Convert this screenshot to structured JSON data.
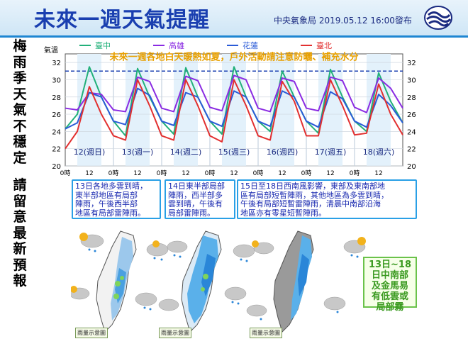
{
  "header": {
    "title": "未來一週天氣提醒",
    "issuer": "中央氣象局 2019.05.12 16:00發布"
  },
  "side_text": [
    "梅",
    "雨",
    "季",
    "天",
    "氣",
    "不",
    "穩",
    "定",
    "請",
    "留",
    "意",
    "最",
    "新",
    "預",
    "報"
  ],
  "chart_data": {
    "type": "line",
    "ylabel": "氣溫",
    "ylim": [
      20,
      33
    ],
    "yticks": [
      20,
      22,
      24,
      26,
      28,
      30,
      32
    ],
    "banner": "未來一週各地白天暖熱如夏，戶外活動請注意防曬、補充水分",
    "reference_line": 31,
    "day_labels": [
      "12(週日)",
      "13(週一)",
      "14(週二)",
      "15(週三)",
      "16(週四)",
      "17(週五)",
      "18(週六)"
    ],
    "x_ticks": [
      "0時",
      "12",
      "0時",
      "12",
      "0時",
      "12",
      "0時",
      "12",
      "0時",
      "12",
      "0時",
      "12",
      "0時",
      "12"
    ],
    "x_hours": [
      0,
      6,
      12,
      18,
      24,
      30,
      36,
      42,
      48,
      54,
      60,
      66,
      72,
      78,
      84,
      90,
      96,
      102,
      108,
      114,
      120,
      126,
      132,
      138,
      144,
      150,
      156,
      162,
      168
    ],
    "series": [
      {
        "name": "臺中",
        "color": "#22b07a",
        "values": [
          24.3,
          26,
          31.5,
          28,
          25.2,
          23.5,
          31.3,
          28,
          25.2,
          23.7,
          31.4,
          28,
          25.2,
          23.7,
          31.5,
          28,
          25.2,
          24,
          31,
          28,
          25.2,
          23.8,
          31.2,
          28,
          25.2,
          24,
          30.8,
          27.5,
          25
        ]
      },
      {
        "name": "高雄",
        "color": "#8a2be2",
        "values": [
          26.7,
          26.5,
          28.5,
          28.3,
          26.5,
          26.3,
          30.3,
          29.8,
          26.7,
          26.3,
          30.4,
          29.9,
          26.8,
          26.4,
          30.5,
          30,
          26.7,
          26.3,
          30.2,
          29.8,
          26.7,
          26.4,
          30.3,
          29.9,
          26.8,
          26.2,
          30.2,
          29,
          26.7
        ]
      },
      {
        "name": "花蓮",
        "color": "#2a5bd7",
        "values": [
          24.3,
          25,
          28.5,
          28,
          25.2,
          24.8,
          29,
          28.2,
          25.2,
          24.7,
          28.5,
          28,
          25.2,
          24.6,
          28.7,
          28,
          25.2,
          24.6,
          28.7,
          28,
          25.2,
          24.5,
          28.6,
          27.8,
          25.2,
          24.5,
          28.3,
          27,
          25
        ]
      },
      {
        "name": "臺北",
        "color": "#e23030",
        "values": [
          22,
          24,
          29.2,
          26,
          23.5,
          23,
          30,
          27,
          23.5,
          23,
          30,
          27,
          23.5,
          22.8,
          30,
          27,
          23.5,
          23,
          29.8,
          27.5,
          23.5,
          23.5,
          30,
          27,
          23.6,
          23.8,
          29.5,
          26,
          23.6
        ]
      }
    ]
  },
  "panels": {
    "p13": [
      "13日各地多雲到晴，",
      "東半部地區有局部",
      "陣雨，午後西半部",
      "地區有局部雷陣雨。"
    ],
    "p14": [
      "14日東半部局部",
      "陣雨，西半部多",
      "雲到晴，午後有",
      "局部雷陣雨。"
    ],
    "p15": [
      "15日至18日西南風影響，東部及東南部地",
      "區有局部短暫陣雨，其他地區為多雲到晴，",
      "午後有局部短暫雷陣雨，清晨中南部沿海",
      "地區亦有零星短暫陣雨。"
    ]
  },
  "map_caption": "雨量示意圖",
  "fog_note": [
    "13日~18",
    "日中南部",
    "及金馬易",
    "有低雲或",
    "局部霧"
  ]
}
